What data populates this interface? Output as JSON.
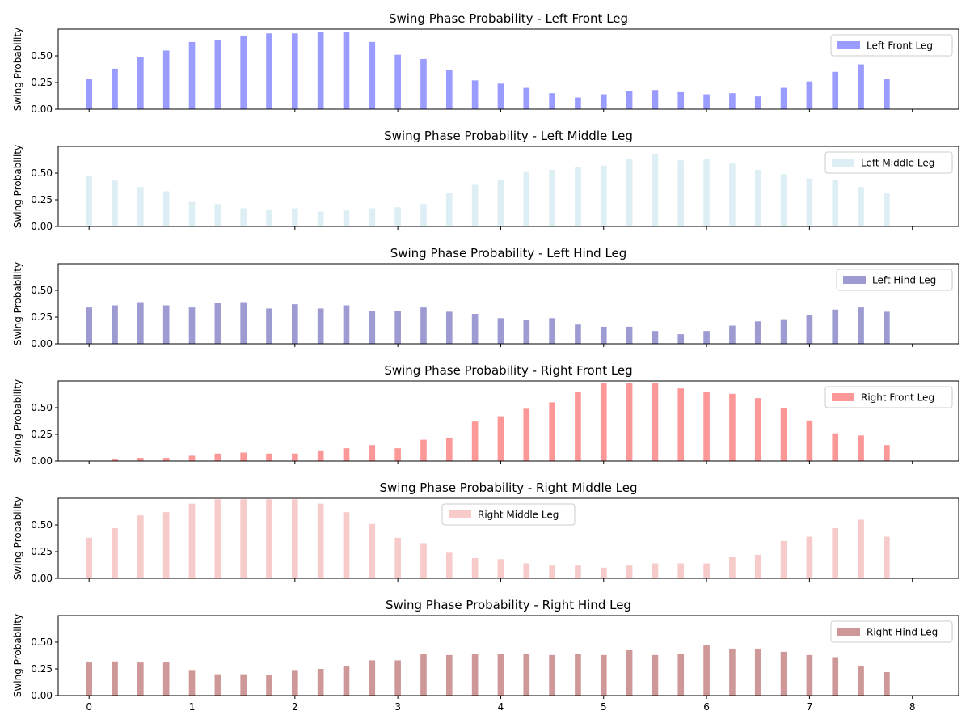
{
  "figure": {
    "ylabel": "Swing Probability",
    "x_ticks": [
      "0",
      "1",
      "2",
      "3",
      "4",
      "5",
      "6",
      "7",
      "8"
    ],
    "y_ticks": [
      "0.00",
      "0.25",
      "0.50"
    ]
  },
  "chart_data": [
    {
      "type": "bar",
      "title": "Swing Phase Probability - Left Front Leg",
      "ylabel": "Swing Probability",
      "legend": "Left Front Leg",
      "legend_position": "top-right",
      "color": "#9a9cff",
      "xlim": [
        -0.3,
        8.45
      ],
      "ylim": [
        0,
        0.75
      ],
      "x": [
        0,
        0.25,
        0.5,
        0.75,
        1.0,
        1.25,
        1.5,
        1.75,
        2.0,
        2.25,
        2.5,
        2.75,
        3.0,
        3.25,
        3.5,
        3.75,
        4.0,
        4.25,
        4.5,
        4.75,
        5.0,
        5.25,
        5.5,
        5.75,
        6.0,
        6.25,
        6.5,
        6.75,
        7.0,
        7.25,
        7.5,
        7.75
      ],
      "values": [
        0.28,
        0.38,
        0.49,
        0.55,
        0.63,
        0.65,
        0.69,
        0.71,
        0.71,
        0.72,
        0.72,
        0.63,
        0.51,
        0.47,
        0.37,
        0.27,
        0.24,
        0.2,
        0.15,
        0.11,
        0.14,
        0.17,
        0.18,
        0.16,
        0.14,
        0.15,
        0.12,
        0.2,
        0.26,
        0.35,
        0.42,
        0.28
      ]
    },
    {
      "type": "bar",
      "title": "Swing Phase Probability - Left Middle Leg",
      "ylabel": "Swing Probability",
      "legend": "Left Middle Leg",
      "legend_position": "top-right",
      "color": "#ddeff5",
      "xlim": [
        -0.3,
        8.45
      ],
      "ylim": [
        0,
        0.75
      ],
      "x": [
        0,
        0.25,
        0.5,
        0.75,
        1.0,
        1.25,
        1.5,
        1.75,
        2.0,
        2.25,
        2.5,
        2.75,
        3.0,
        3.25,
        3.5,
        3.75,
        4.0,
        4.25,
        4.5,
        4.75,
        5.0,
        5.25,
        5.5,
        5.75,
        6.0,
        6.25,
        6.5,
        6.75,
        7.0,
        7.25,
        7.5,
        7.75
      ],
      "values": [
        0.47,
        0.43,
        0.37,
        0.33,
        0.23,
        0.21,
        0.17,
        0.16,
        0.17,
        0.14,
        0.15,
        0.17,
        0.18,
        0.21,
        0.31,
        0.39,
        0.44,
        0.51,
        0.53,
        0.56,
        0.57,
        0.63,
        0.68,
        0.62,
        0.63,
        0.59,
        0.53,
        0.49,
        0.45,
        0.44,
        0.37,
        0.31
      ]
    },
    {
      "type": "bar",
      "title": "Swing Phase Probability - Left Hind Leg",
      "ylabel": "Swing Probability",
      "legend": "Left Hind Leg",
      "legend_position": "top-right",
      "color": "#9d9bd2",
      "xlim": [
        -0.3,
        8.45
      ],
      "ylim": [
        0,
        0.75
      ],
      "x": [
        0,
        0.25,
        0.5,
        0.75,
        1.0,
        1.25,
        1.5,
        1.75,
        2.0,
        2.25,
        2.5,
        2.75,
        3.0,
        3.25,
        3.5,
        3.75,
        4.0,
        4.25,
        4.5,
        4.75,
        5.0,
        5.25,
        5.5,
        5.75,
        6.0,
        6.25,
        6.5,
        6.75,
        7.0,
        7.25,
        7.5,
        7.75
      ],
      "values": [
        0.34,
        0.36,
        0.39,
        0.36,
        0.34,
        0.38,
        0.39,
        0.33,
        0.37,
        0.33,
        0.36,
        0.31,
        0.31,
        0.34,
        0.3,
        0.28,
        0.24,
        0.22,
        0.24,
        0.18,
        0.16,
        0.16,
        0.12,
        0.09,
        0.12,
        0.17,
        0.21,
        0.23,
        0.27,
        0.32,
        0.34,
        0.3
      ]
    },
    {
      "type": "bar",
      "title": "Swing Phase Probability - Right Front Leg",
      "ylabel": "Swing Probability",
      "legend": "Right Front Leg",
      "legend_position": "top-right",
      "color": "#fd9898",
      "xlim": [
        -0.3,
        8.45
      ],
      "ylim": [
        0,
        0.75
      ],
      "x": [
        0,
        0.25,
        0.5,
        0.75,
        1.0,
        1.25,
        1.5,
        1.75,
        2.0,
        2.25,
        2.5,
        2.75,
        3.0,
        3.25,
        3.5,
        3.75,
        4.0,
        4.25,
        4.5,
        4.75,
        5.0,
        5.25,
        5.5,
        5.75,
        6.0,
        6.25,
        6.5,
        6.75,
        7.0,
        7.25,
        7.5,
        7.75
      ],
      "values": [
        0.0,
        0.02,
        0.03,
        0.03,
        0.05,
        0.07,
        0.08,
        0.07,
        0.07,
        0.1,
        0.12,
        0.15,
        0.12,
        0.2,
        0.22,
        0.37,
        0.42,
        0.49,
        0.55,
        0.65,
        0.73,
        0.73,
        0.73,
        0.68,
        0.65,
        0.63,
        0.59,
        0.5,
        0.38,
        0.26,
        0.24,
        0.15
      ]
    },
    {
      "type": "bar",
      "title": "Swing Phase Probability - Right Middle Leg",
      "ylabel": "Swing Probability",
      "legend": "Right Middle Leg",
      "legend_position": "top-center",
      "color": "#f6cbca",
      "xlim": [
        -0.3,
        8.45
      ],
      "ylim": [
        0,
        0.75
      ],
      "x": [
        0,
        0.25,
        0.5,
        0.75,
        1.0,
        1.25,
        1.5,
        1.75,
        2.0,
        2.25,
        2.5,
        2.75,
        3.0,
        3.25,
        3.5,
        3.75,
        4.0,
        4.25,
        4.5,
        4.75,
        5.0,
        5.25,
        5.5,
        5.75,
        6.0,
        6.25,
        6.5,
        6.75,
        7.0,
        7.25,
        7.5,
        7.75
      ],
      "values": [
        0.38,
        0.47,
        0.59,
        0.62,
        0.7,
        0.74,
        0.74,
        0.74,
        0.74,
        0.7,
        0.62,
        0.51,
        0.38,
        0.33,
        0.24,
        0.19,
        0.18,
        0.14,
        0.12,
        0.12,
        0.1,
        0.12,
        0.14,
        0.14,
        0.14,
        0.2,
        0.22,
        0.35,
        0.39,
        0.47,
        0.55,
        0.39
      ]
    },
    {
      "type": "bar",
      "title": "Swing Phase Probability - Right Hind Leg",
      "ylabel": "Swing Probability",
      "legend": "Right Hind Leg",
      "legend_position": "top-right",
      "color": "#cf9898",
      "xlim": [
        -0.3,
        8.45
      ],
      "ylim": [
        0,
        0.75
      ],
      "x": [
        0,
        0.25,
        0.5,
        0.75,
        1.0,
        1.25,
        1.5,
        1.75,
        2.0,
        2.25,
        2.5,
        2.75,
        3.0,
        3.25,
        3.5,
        3.75,
        4.0,
        4.25,
        4.5,
        4.75,
        5.0,
        5.25,
        5.5,
        5.75,
        6.0,
        6.25,
        6.5,
        6.75,
        7.0,
        7.25,
        7.5,
        7.75
      ],
      "values": [
        0.31,
        0.32,
        0.31,
        0.31,
        0.24,
        0.2,
        0.2,
        0.19,
        0.24,
        0.25,
        0.28,
        0.33,
        0.33,
        0.39,
        0.38,
        0.39,
        0.39,
        0.39,
        0.38,
        0.39,
        0.38,
        0.43,
        0.38,
        0.39,
        0.47,
        0.44,
        0.44,
        0.41,
        0.38,
        0.36,
        0.28,
        0.22
      ]
    }
  ]
}
